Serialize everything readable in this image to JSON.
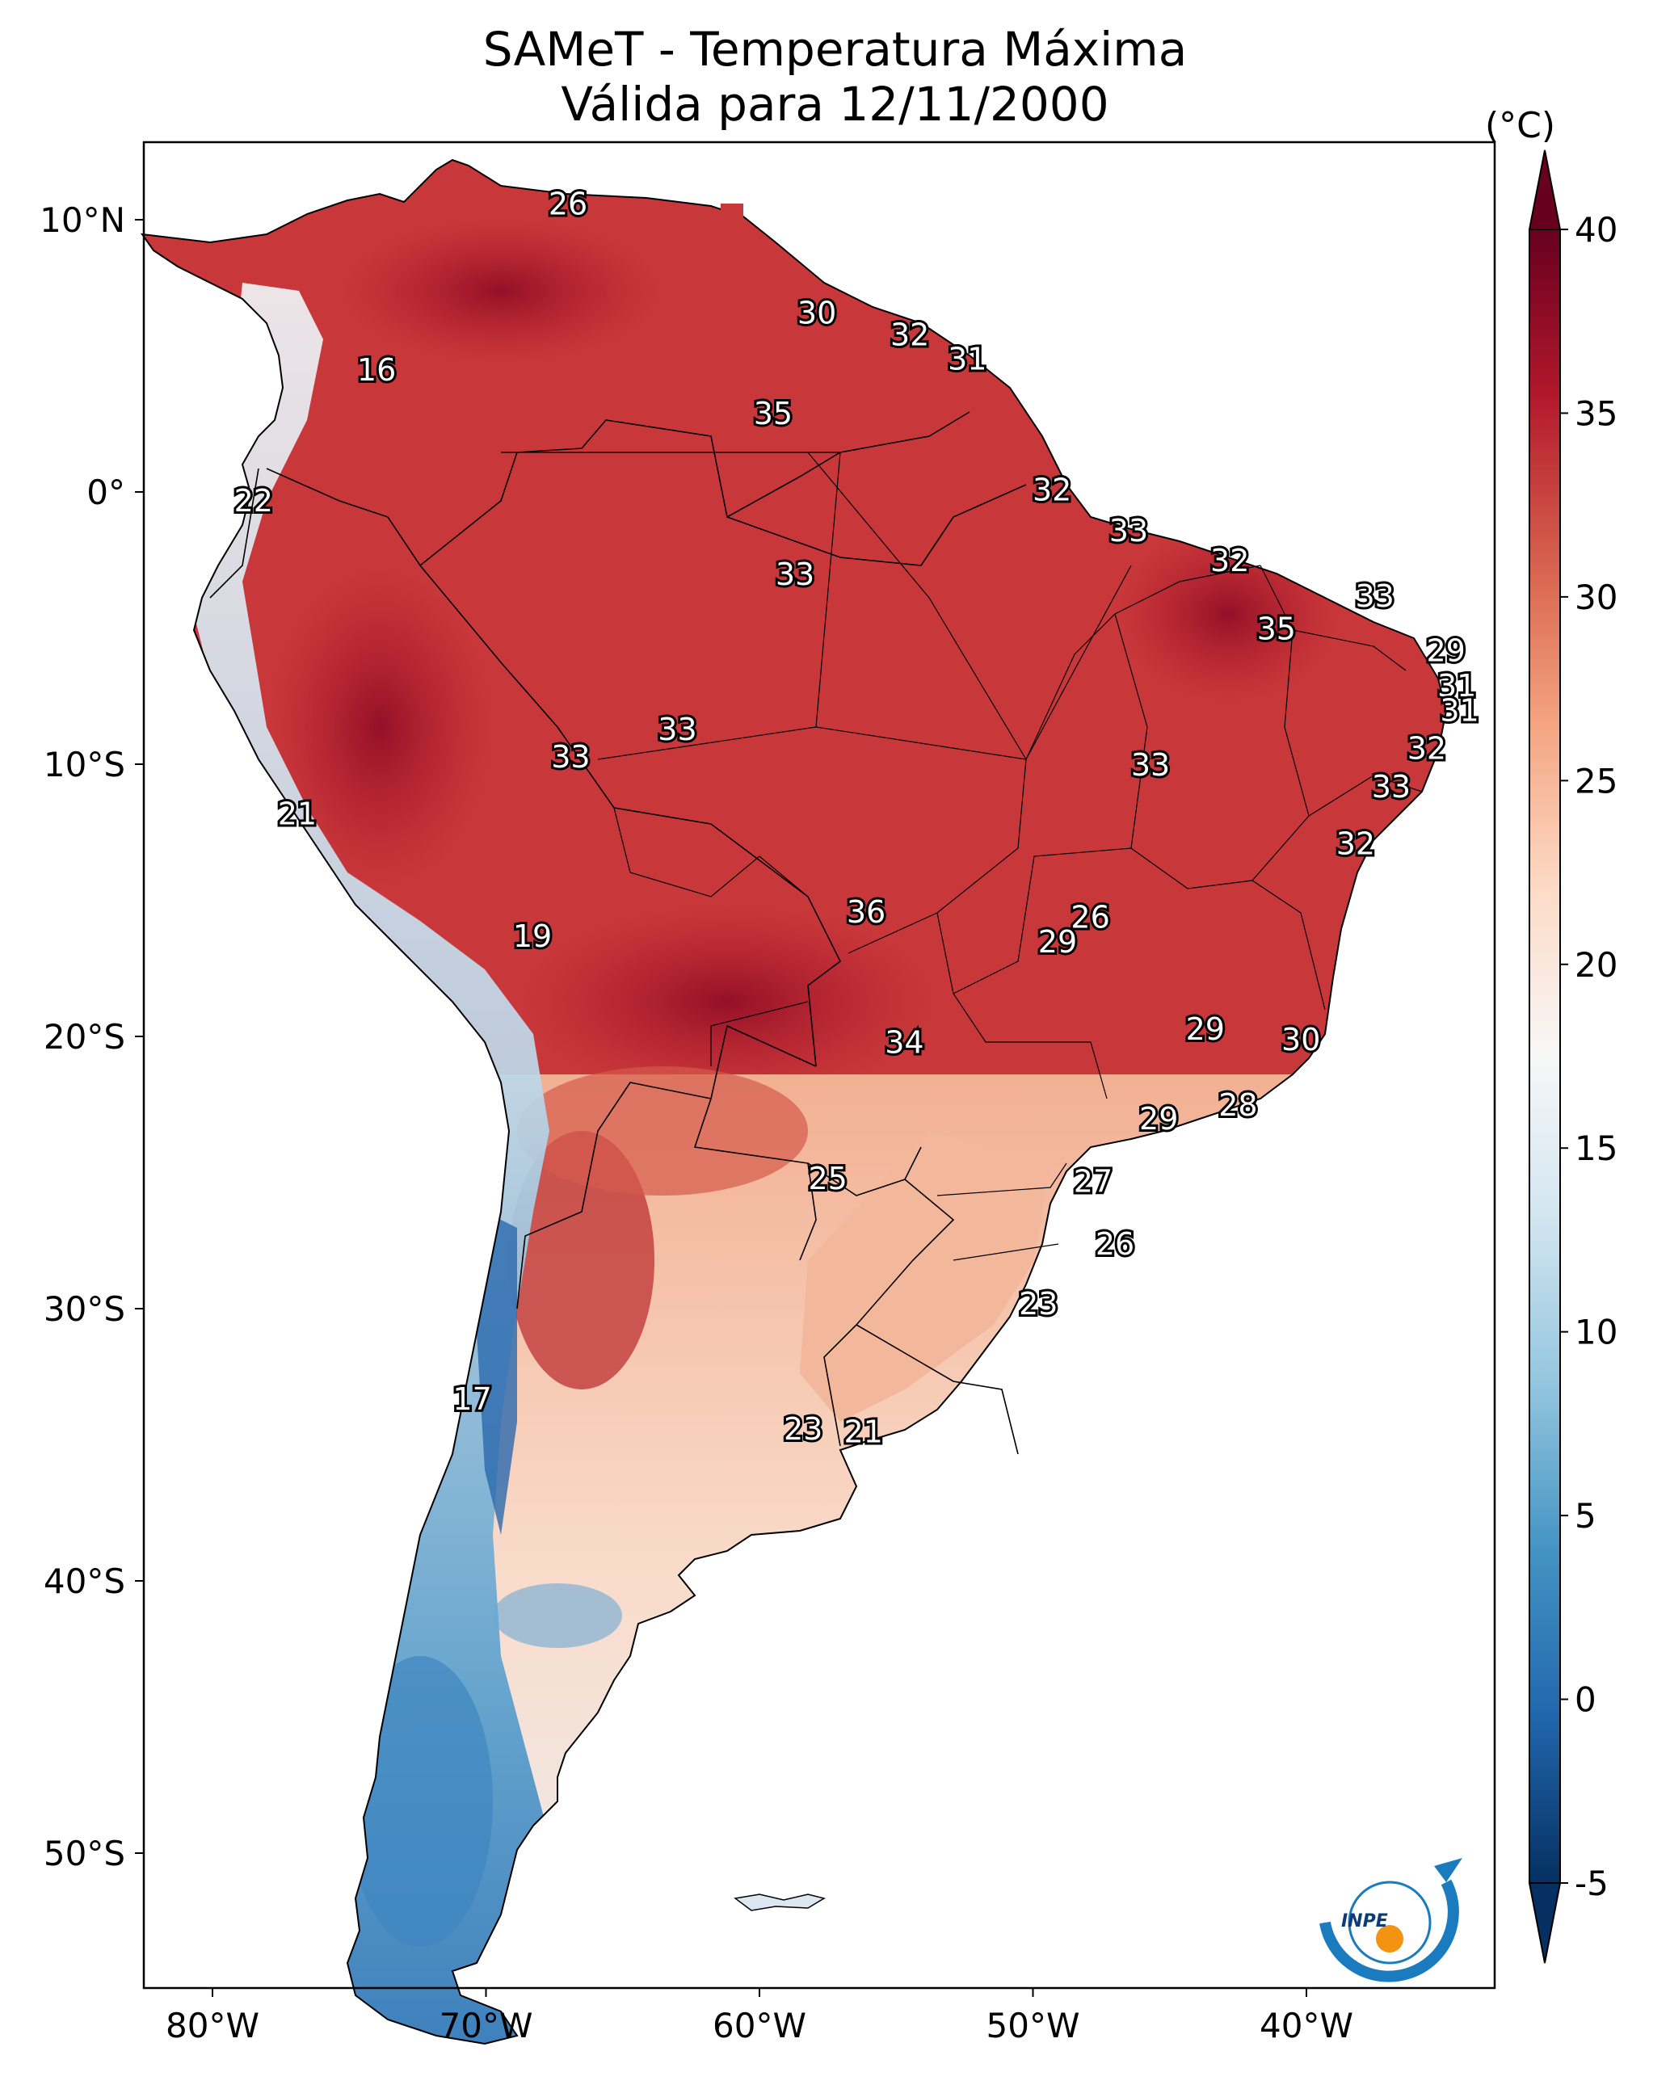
{
  "title": {
    "line1": "SAMeT - Temperatura Máxima",
    "line2": "Válida para 12/11/2000"
  },
  "axes": {
    "lon_ticks": [
      "80°W",
      "70°W",
      "60°W",
      "50°W",
      "40°W"
    ],
    "lat_ticks": [
      "10°N",
      "0°",
      "10°S",
      "20°S",
      "30°S",
      "40°S",
      "50°S"
    ]
  },
  "colorbar": {
    "unit": "(°C)",
    "min": -5,
    "max": 40,
    "ticks": [
      "40",
      "35",
      "30",
      "25",
      "20",
      "15",
      "10",
      "5",
      "0",
      "-5"
    ],
    "colors": [
      "#67001f",
      "#b2182b",
      "#d6604d",
      "#f4a582",
      "#fddbc7",
      "#f7f7f7",
      "#d1e5f0",
      "#92c5de",
      "#4393c3",
      "#2166ac",
      "#053061"
    ]
  },
  "contour_labels": [
    {
      "value": "26",
      "lon": -67,
      "lat": 10.5
    },
    {
      "value": "30",
      "lon": -57.9,
      "lat": 6.5
    },
    {
      "value": "32",
      "lon": -54.5,
      "lat": 5.7
    },
    {
      "value": "31",
      "lon": -52.4,
      "lat": 4.8
    },
    {
      "value": "16",
      "lon": -74,
      "lat": 4.4
    },
    {
      "value": "35",
      "lon": -59.5,
      "lat": 2.8
    },
    {
      "value": "32",
      "lon": -49.3,
      "lat": 0.0
    },
    {
      "value": "22",
      "lon": -78.5,
      "lat": -0.4
    },
    {
      "value": "33",
      "lon": -46.5,
      "lat": -1.5
    },
    {
      "value": "32",
      "lon": -42.8,
      "lat": -2.6
    },
    {
      "value": "33",
      "lon": -58.7,
      "lat": -3.1
    },
    {
      "value": "33",
      "lon": -37.5,
      "lat": -3.9
    },
    {
      "value": "35",
      "lon": -41.1,
      "lat": -5.1
    },
    {
      "value": "29",
      "lon": -34.9,
      "lat": -5.9
    },
    {
      "value": "31",
      "lon": -34.5,
      "lat": -7.2
    },
    {
      "value": "31",
      "lon": -34.4,
      "lat": -8.1
    },
    {
      "value": "33",
      "lon": -63,
      "lat": -8.8
    },
    {
      "value": "32",
      "lon": -35.6,
      "lat": -9.5
    },
    {
      "value": "33",
      "lon": -66.9,
      "lat": -9.8
    },
    {
      "value": "33",
      "lon": -45.7,
      "lat": -10.1
    },
    {
      "value": "33",
      "lon": -36.9,
      "lat": -10.9
    },
    {
      "value": "21",
      "lon": -76.9,
      "lat": -11.9
    },
    {
      "value": "32",
      "lon": -38.2,
      "lat": -13.0
    },
    {
      "value": "36",
      "lon": -56.1,
      "lat": -15.5
    },
    {
      "value": "26",
      "lon": -47.9,
      "lat": -15.7
    },
    {
      "value": "29",
      "lon": -49.1,
      "lat": -16.6
    },
    {
      "value": "19",
      "lon": -68.3,
      "lat": -16.4
    },
    {
      "value": "29",
      "lon": -43.7,
      "lat": -19.8
    },
    {
      "value": "30",
      "lon": -40.2,
      "lat": -20.2
    },
    {
      "value": "34",
      "lon": -54.7,
      "lat": -20.3
    },
    {
      "value": "28",
      "lon": -42.5,
      "lat": -22.6
    },
    {
      "value": "29",
      "lon": -45.4,
      "lat": -23.1
    },
    {
      "value": "25",
      "lon": -57.5,
      "lat": -25.3
    },
    {
      "value": "27",
      "lon": -47.8,
      "lat": -25.4
    },
    {
      "value": "26",
      "lon": -47.0,
      "lat": -27.7
    },
    {
      "value": "23",
      "lon": -49.8,
      "lat": -29.9
    },
    {
      "value": "17",
      "lon": -70.5,
      "lat": -33.4
    },
    {
      "value": "23",
      "lon": -58.4,
      "lat": -34.5
    },
    {
      "value": "21",
      "lon": -56.2,
      "lat": -34.6
    }
  ],
  "logo": {
    "text": "INPE"
  }
}
